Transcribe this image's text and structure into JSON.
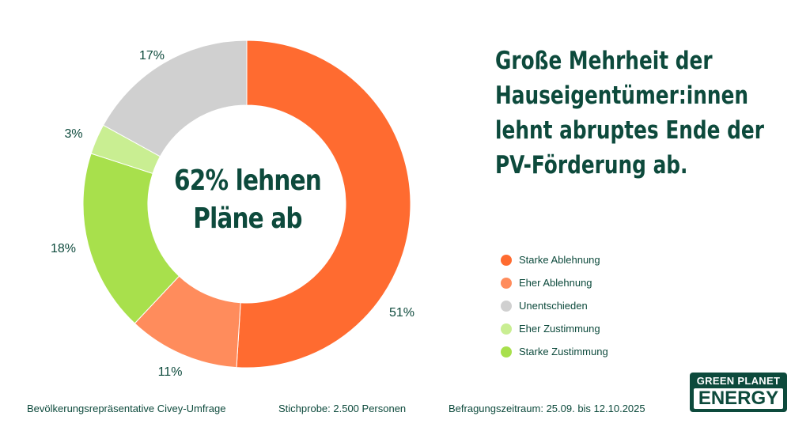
{
  "chart_data": {
    "type": "pie",
    "donut": true,
    "center_label": [
      "62% lehnen",
      "Pläne ab"
    ],
    "categories": [
      "Starke Ablehnung",
      "Eher Ablehnung",
      "Starke Zustimmung",
      "Eher Zustimmung",
      "Unentschieden"
    ],
    "values": [
      51,
      11,
      18,
      3,
      17
    ],
    "labels": [
      "51%",
      "11%",
      "18%",
      "3%",
      "17%"
    ],
    "colors": [
      "#ff6b30",
      "#ff8c5c",
      "#a8e04c",
      "#c9ee92",
      "#d0d0d0"
    ],
    "legend_placement": "right",
    "legend": [
      {
        "label": "Starke Ablehnung",
        "color": "#ff6b30"
      },
      {
        "label": "Eher Ablehnung",
        "color": "#ff8c5c"
      },
      {
        "label": "Unentschieden",
        "color": "#d0d0d0"
      },
      {
        "label": "Eher Zustimmung",
        "color": "#c9ee92"
      },
      {
        "label": "Starke Zustimmung",
        "color": "#a8e04c"
      }
    ]
  },
  "title": [
    "Große Mehrheit der",
    "Hauseigentümer:innen",
    "lehnt abruptes Ende der",
    "PV-Förderung ab."
  ],
  "footer": {
    "survey": "Bevölkerungsrepräsentative Civey-Umfrage",
    "sample": "Stichprobe: 2.500 Personen",
    "period": "Befragungszeitraum: 25.09. bis 12.10.2025"
  },
  "logo": {
    "top": "GREEN PLANET",
    "bottom": "ENERGY"
  },
  "accent": "#0d4a3c"
}
